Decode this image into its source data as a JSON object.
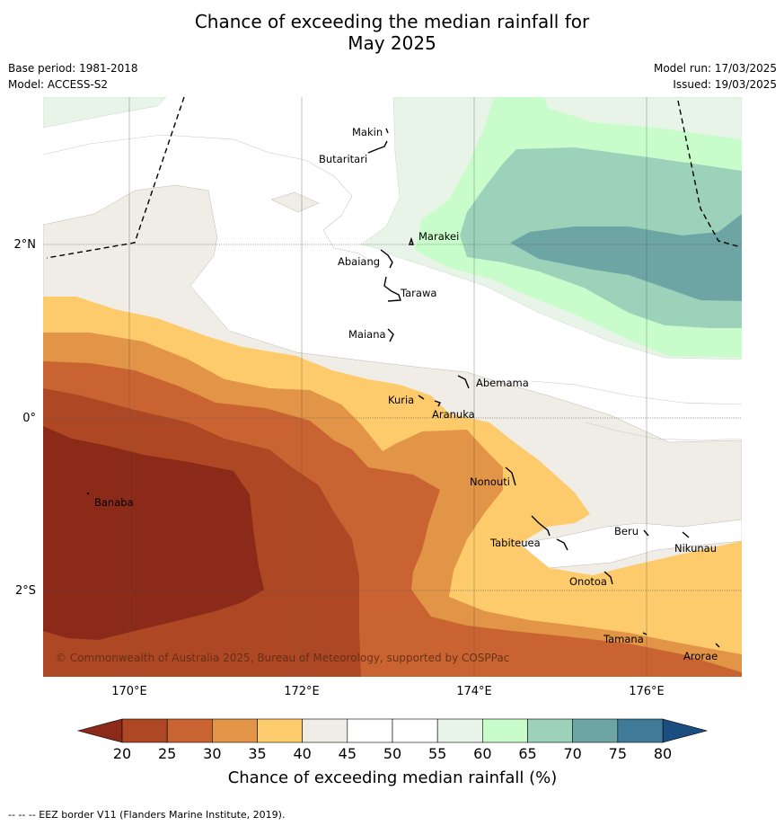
{
  "title_line1": "Chance of exceeding the median rainfall for",
  "title_line2": "May 2025",
  "meta": {
    "base_period": "Base period: 1981-2018",
    "model": "Model: ACCESS-S2",
    "model_run": "Model run: 17/03/2025",
    "issued": "Issued: 19/03/2025"
  },
  "axes": {
    "lon_ticks": [
      "170°E",
      "172°E",
      "174°E",
      "176°E"
    ],
    "lat_ticks": [
      "2°N",
      "0°",
      "2°S"
    ]
  },
  "places": [
    "Makin",
    "Butaritari",
    "Marakei",
    "Abaiang",
    "Tarawa",
    "Maiana",
    "Abemama",
    "Kuria",
    "Aranuka",
    "Banaba",
    "Nonouti",
    "Beru",
    "Nikunau",
    "Tabiteuea",
    "Onotoa",
    "Tamana",
    "Arorae"
  ],
  "copyright": "© Commonwealth of Australia 2025, Bureau of Meteorology, supported by COSPPac",
  "colorbar": {
    "title": "Chance of exceeding median rainfall (%)",
    "ticks": [
      "20",
      "25",
      "30",
      "35",
      "40",
      "45",
      "50",
      "55",
      "60",
      "65",
      "70",
      "75",
      "80"
    ],
    "colors": [
      "#8B2A18",
      "#AE4824",
      "#C96432",
      "#E29447",
      "#FDCB6B",
      "#F0ECE6",
      "#FFFFFF",
      "#FFFFFF",
      "#E8F4E8",
      "#C9FCCB",
      "#9CD2BA",
      "#6DA5A5",
      "#3F7A98",
      "#1B4E80"
    ]
  },
  "footer": "--  --  -- EEZ border V11 (Flanders Marine Institute, 2019)."
}
